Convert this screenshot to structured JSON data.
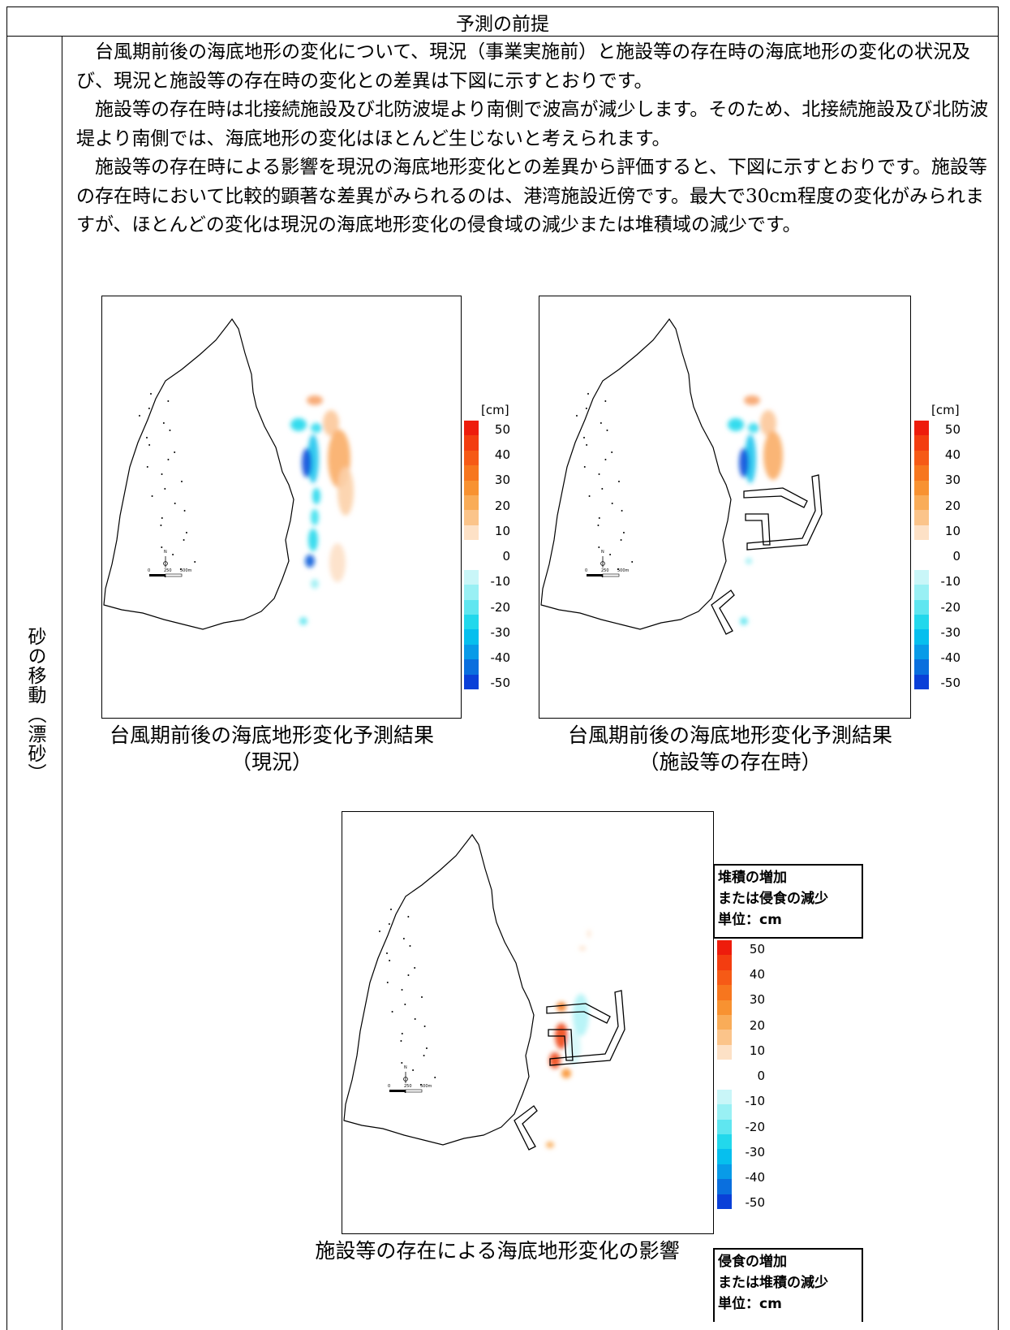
{
  "header": {
    "title": "予測の前提"
  },
  "side": {
    "label": "砂の移動（漂砂）"
  },
  "paragraphs": [
    "台風期前後の海底地形の変化について、現況（事業実施前）と施設等の存在時の海底地形の変化の状況及び、現況と施設等の存在時の変化との差異は下図に示すとおりです。",
    "施設等の存在時は北接続施設及び北防波堤より南側で波高が減少します。そのため、北接続施設及び北防波堤より南側では、海底地形の変化はほとんど生じないと考えられます。",
    "施設等の存在時による影響を現況の海底地形変化との差異から評価すると、下図に示すとおりです。施設等の存在時において比較的顕著な差異がみられるのは、港湾施設近傍です。最大で30cm程度の変化がみられますが、ほとんどの変化は現況の海底地形変化の侵食域の減少または堆積域の減少です。"
  ],
  "colorbar": {
    "unit": "[cm]",
    "ticks": [
      "50",
      "40",
      "30",
      "20",
      "10",
      "0",
      "-10",
      "-20",
      "-30",
      "-40",
      "-50"
    ],
    "colors": [
      "#ee1c0c",
      "#f33d10",
      "#f65a16",
      "#f7761e",
      "#f89231",
      "#f9ac58",
      "#fbc48a",
      "#fde1c6",
      "#ffffff",
      "#ffffff",
      "#c9f6f8",
      "#99f0f4",
      "#5fe6f0",
      "#22d8ec",
      "#06bfee",
      "#089be8",
      "#0a6fde",
      "#0a40d8"
    ]
  },
  "scale": {
    "labels": [
      "0",
      "250",
      "500m"
    ],
    "north": "N"
  },
  "maps": [
    {
      "caption_line1": "台風期前後の海底地形変化予測結果",
      "caption_line2": "（現況）"
    },
    {
      "caption_line1": "台風期前後の海底地形変化予測結果",
      "caption_line2": "（施設等の存在時）"
    },
    {
      "caption_line1": "施設等の存在による海底地形変化の影響"
    }
  ],
  "legend_top": {
    "line1": "堆積の増加",
    "line2": "または侵食の減少",
    "line3": "単位：cm"
  },
  "legend_bottom": {
    "line1": "侵食の増加",
    "line2": "または堆積の減少",
    "line3": "単位：cm"
  }
}
